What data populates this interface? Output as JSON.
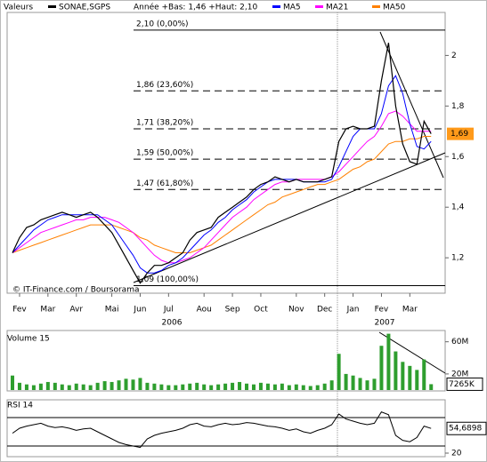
{
  "chart_data": [
    {
      "type": "line",
      "legend_title": "Valeurs",
      "range_note": "Année +Bas: 1,46 +Haut: 2,10",
      "source": "© IT-Finance.com / Boursorama",
      "categories": [
        null,
        "Fev",
        null,
        null,
        null,
        "Mar",
        null,
        null,
        null,
        "Avr",
        null,
        null,
        null,
        null,
        "Mai",
        null,
        null,
        null,
        "Jun",
        null,
        null,
        null,
        "Jul",
        null,
        null,
        null,
        null,
        "Aou",
        null,
        null,
        null,
        "Sep",
        null,
        null,
        null,
        "Oct",
        null,
        null,
        null,
        null,
        "Nov",
        null,
        null,
        null,
        "Dec",
        null,
        null,
        null,
        "Jan",
        null,
        null,
        null,
        "Fev",
        null,
        null,
        null,
        "Mar",
        null,
        null,
        null
      ],
      "years": [
        "2006",
        "2007"
      ],
      "series": [
        {
          "name": "SONAE,SGPS",
          "color": "#000000",
          "values": [
            1.22,
            1.28,
            1.32,
            1.33,
            1.35,
            1.36,
            1.37,
            1.38,
            1.37,
            1.36,
            1.37,
            1.38,
            1.36,
            1.33,
            1.3,
            1.25,
            1.2,
            1.15,
            1.1,
            1.14,
            1.17,
            1.17,
            1.18,
            1.2,
            1.22,
            1.27,
            1.3,
            1.31,
            1.32,
            1.36,
            1.38,
            1.4,
            1.42,
            1.44,
            1.47,
            1.49,
            1.5,
            1.52,
            1.51,
            1.5,
            1.51,
            1.5,
            1.5,
            1.5,
            1.51,
            1.52,
            1.66,
            1.71,
            1.72,
            1.71,
            1.71,
            1.72,
            1.9,
            2.05,
            1.8,
            1.65,
            1.58,
            1.57,
            1.74,
            1.69
          ]
        },
        {
          "name": "MA5",
          "color": "#0000ff",
          "values": [
            1.22,
            1.25,
            1.28,
            1.31,
            1.33,
            1.35,
            1.36,
            1.37,
            1.37,
            1.37,
            1.37,
            1.37,
            1.37,
            1.35,
            1.33,
            1.29,
            1.25,
            1.21,
            1.16,
            1.14,
            1.14,
            1.15,
            1.17,
            1.18,
            1.2,
            1.23,
            1.26,
            1.29,
            1.31,
            1.34,
            1.36,
            1.39,
            1.41,
            1.43,
            1.46,
            1.48,
            1.5,
            1.51,
            1.51,
            1.51,
            1.51,
            1.5,
            1.5,
            1.5,
            1.5,
            1.51,
            1.56,
            1.62,
            1.68,
            1.71,
            1.71,
            1.71,
            1.77,
            1.88,
            1.92,
            1.85,
            1.73,
            1.64,
            1.63,
            1.66
          ]
        },
        {
          "name": "MA21",
          "color": "#ff00ff",
          "values": [
            1.22,
            1.24,
            1.26,
            1.28,
            1.3,
            1.31,
            1.32,
            1.33,
            1.34,
            1.35,
            1.35,
            1.36,
            1.36,
            1.36,
            1.35,
            1.34,
            1.32,
            1.3,
            1.27,
            1.24,
            1.21,
            1.19,
            1.18,
            1.18,
            1.19,
            1.2,
            1.22,
            1.24,
            1.27,
            1.3,
            1.33,
            1.36,
            1.38,
            1.4,
            1.43,
            1.45,
            1.47,
            1.49,
            1.5,
            1.5,
            1.51,
            1.51,
            1.51,
            1.51,
            1.51,
            1.52,
            1.54,
            1.57,
            1.6,
            1.63,
            1.66,
            1.68,
            1.72,
            1.77,
            1.78,
            1.76,
            1.73,
            1.7,
            1.7,
            1.7
          ]
        },
        {
          "name": "MA50",
          "color": "#ff8000",
          "values": [
            1.22,
            1.23,
            1.24,
            1.25,
            1.26,
            1.27,
            1.28,
            1.29,
            1.3,
            1.31,
            1.32,
            1.33,
            1.33,
            1.33,
            1.33,
            1.32,
            1.31,
            1.3,
            1.28,
            1.27,
            1.25,
            1.24,
            1.23,
            1.22,
            1.22,
            1.22,
            1.23,
            1.24,
            1.25,
            1.27,
            1.29,
            1.31,
            1.33,
            1.35,
            1.37,
            1.39,
            1.41,
            1.42,
            1.44,
            1.45,
            1.46,
            1.47,
            1.48,
            1.49,
            1.49,
            1.5,
            1.51,
            1.53,
            1.55,
            1.56,
            1.58,
            1.59,
            1.62,
            1.65,
            1.66,
            1.66,
            1.67,
            1.67,
            1.68,
            1.68
          ]
        }
      ],
      "levels": [
        {
          "value": 2.1,
          "label": "2,10 (0,00%)"
        },
        {
          "value": 1.86,
          "label": "1,86 (23,60%)"
        },
        {
          "value": 1.71,
          "label": "1,71 (38,20%)"
        },
        {
          "value": 1.59,
          "label": "1,59 (50,00%)"
        },
        {
          "value": 1.47,
          "label": "1,47 (61,80%)"
        },
        {
          "value": 1.09,
          "label": "1,09 (100,00%)"
        }
      ],
      "last_value": {
        "value": 1.69,
        "label": "1,69"
      },
      "ylim": [
        1.06,
        2.17
      ],
      "yticks": [
        {
          "value": 1.2,
          "label": "1,2"
        },
        {
          "value": 1.4,
          "label": "1,4"
        },
        {
          "value": 1.6,
          "label": "1,6"
        },
        {
          "value": 1.8,
          "label": "1,8"
        },
        2
      ]
    },
    {
      "type": "bar",
      "title": "Volume 15",
      "color": "#2e9e2e",
      "values": [
        18,
        9,
        7,
        6,
        8,
        10,
        9,
        7,
        6,
        8,
        7,
        6,
        9,
        11,
        10,
        12,
        14,
        13,
        15,
        9,
        8,
        7,
        6,
        6,
        7,
        8,
        9,
        7,
        6,
        7,
        8,
        9,
        10,
        8,
        7,
        9,
        8,
        7,
        8,
        6,
        7,
        6,
        5,
        6,
        8,
        12,
        45,
        20,
        18,
        15,
        12,
        14,
        55,
        70,
        48,
        35,
        30,
        25,
        38,
        7.265
      ],
      "last_label": "7265K",
      "ylim": [
        0,
        74
      ],
      "yticks": [
        {
          "value": 20,
          "label": "20M"
        },
        {
          "value": 60,
          "label": "60M"
        }
      ]
    },
    {
      "type": "line",
      "title": "RSI 14",
      "color": "#000000",
      "values": [
        48,
        55,
        58,
        60,
        62,
        58,
        56,
        57,
        55,
        52,
        54,
        55,
        50,
        45,
        40,
        35,
        32,
        30,
        28,
        40,
        45,
        48,
        50,
        52,
        55,
        60,
        62,
        58,
        57,
        60,
        62,
        60,
        61,
        63,
        62,
        60,
        58,
        57,
        55,
        52,
        54,
        50,
        48,
        52,
        55,
        60,
        75,
        68,
        65,
        62,
        60,
        62,
        78,
        74,
        45,
        38,
        36,
        42,
        58,
        54.6898
      ],
      "last_label": "54,6898",
      "ref_lines": [
        30,
        70
      ],
      "ylim": [
        15,
        95
      ],
      "yticks": [
        20
      ]
    }
  ]
}
